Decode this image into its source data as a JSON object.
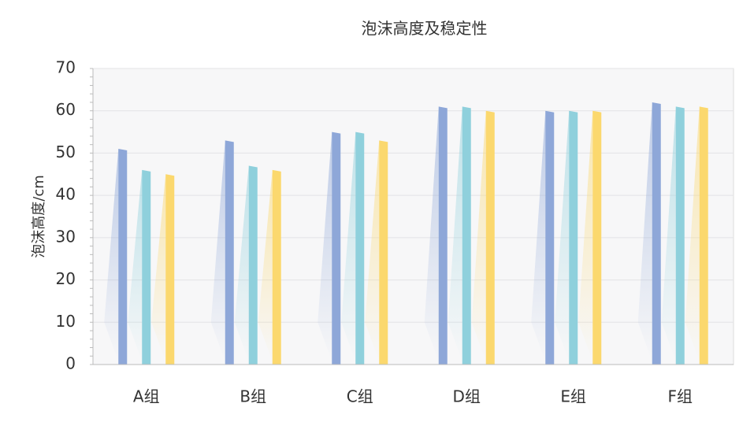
{
  "chart_data": {
    "type": "bar",
    "title": "泡沫高度及稳定性",
    "xlabel": "",
    "ylabel": "泡沫高度/cm",
    "ylim": [
      0,
      70
    ],
    "yticks": [
      0,
      10,
      20,
      30,
      40,
      50,
      60,
      70
    ],
    "grid": true,
    "legend": "none",
    "categories": [
      "A组",
      "B组",
      "C组",
      "D组",
      "E组",
      "F组"
    ],
    "series": [
      {
        "values": [
          51,
          53,
          55,
          61,
          60,
          62
        ],
        "color": "#8ea7d8"
      },
      {
        "values": [
          46,
          47,
          55,
          61,
          60,
          61
        ],
        "color": "#8fd0dc"
      },
      {
        "values": [
          45,
          46,
          53,
          60,
          60,
          61
        ],
        "color": "#fbd86e"
      }
    ]
  }
}
